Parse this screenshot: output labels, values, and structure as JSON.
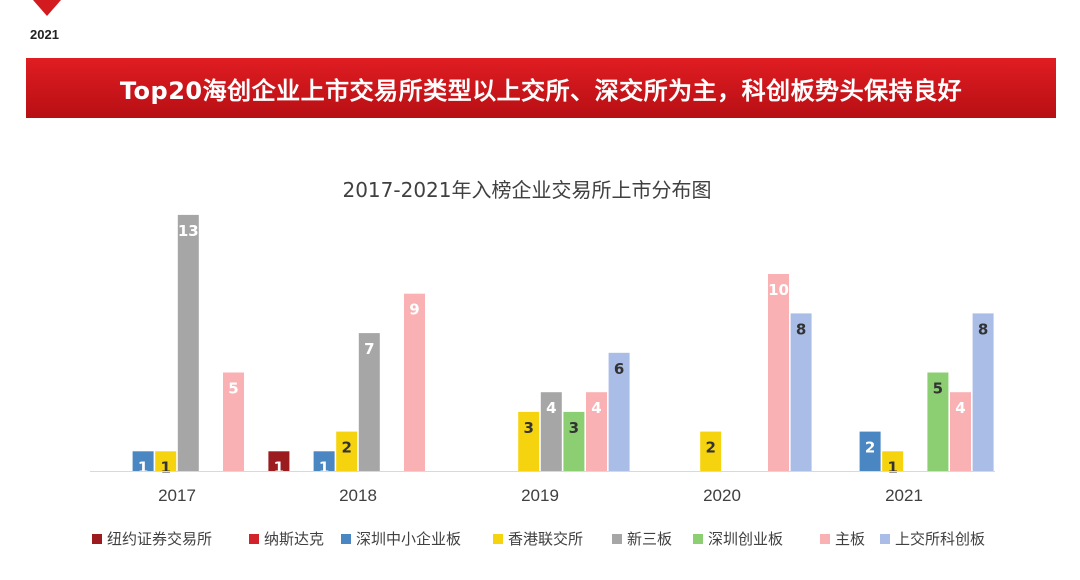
{
  "corner": {
    "year": "2021"
  },
  "banner": {
    "title": "Top20海创企业上市交易所类型以上交所、深交所为主，科创板势头保持良好"
  },
  "chart_data": {
    "type": "bar",
    "title": "2017-2021年入榜企业交易所上市分布图",
    "categories": [
      "2017",
      "2018",
      "2019",
      "2020",
      "2021"
    ],
    "series": [
      {
        "name": "纽约证券交易所",
        "color": "#9b1b1e",
        "values": [
          null,
          1,
          null,
          null,
          null
        ]
      },
      {
        "name": "纳斯达克",
        "color": "#d2232a",
        "values": [
          null,
          null,
          null,
          null,
          null
        ]
      },
      {
        "name": "深圳中小企业板",
        "color": "#4a86c2",
        "values": [
          1,
          1,
          null,
          null,
          2
        ]
      },
      {
        "name": "香港联交所",
        "color": "#f6d30f",
        "values": [
          1,
          2,
          3,
          2,
          1
        ]
      },
      {
        "name": "新三板",
        "color": "#a6a6a6",
        "values": [
          13,
          7,
          4,
          null,
          null
        ]
      },
      {
        "name": "深圳创业板",
        "color": "#8ccf72",
        "values": [
          null,
          null,
          3,
          null,
          5
        ]
      },
      {
        "name": "主板",
        "color": "#f9b1b4",
        "values": [
          5,
          9,
          4,
          10,
          4
        ]
      },
      {
        "name": "上交所科创板",
        "color": "#a9bde7",
        "values": [
          null,
          null,
          6,
          8,
          8
        ]
      }
    ],
    "ylim": [
      0,
      13
    ],
    "grid": false,
    "legend_position": "bottom"
  }
}
